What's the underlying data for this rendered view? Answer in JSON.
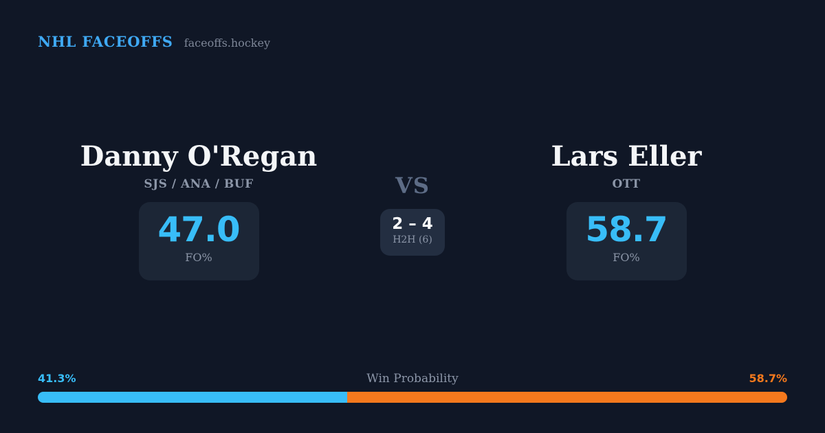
{
  "brand": {
    "title": "NHL FACEOFFS",
    "domain": "faceoffs.hockey"
  },
  "players": [
    {
      "name": "Danny O'Regan",
      "teams": "SJS / ANA / BUF",
      "stat_value": "47.0",
      "stat_label": "FO%"
    },
    {
      "name": "Lars Eller",
      "teams": "OTT",
      "stat_value": "58.7",
      "stat_label": "FO%"
    }
  ],
  "matchup": {
    "vs_label": "VS",
    "h2h_score": "2 – 4",
    "h2h_label": "H2H (6)"
  },
  "win_probability": {
    "title": "Win Probability",
    "left_label": "41.3%",
    "right_label": "58.7%",
    "left_value": 41.3,
    "right_value": 58.7
  },
  "colors": {
    "background": "#101726",
    "card": "#1c2636",
    "h2h_card": "#232e41",
    "brand_blue": "#3fa9f4",
    "accent_blue": "#38bdf8",
    "accent_orange": "#f5791d",
    "text_primary": "#f4f6f8",
    "text_muted": "#8c96a8",
    "vs_gray": "#5d6c86"
  }
}
